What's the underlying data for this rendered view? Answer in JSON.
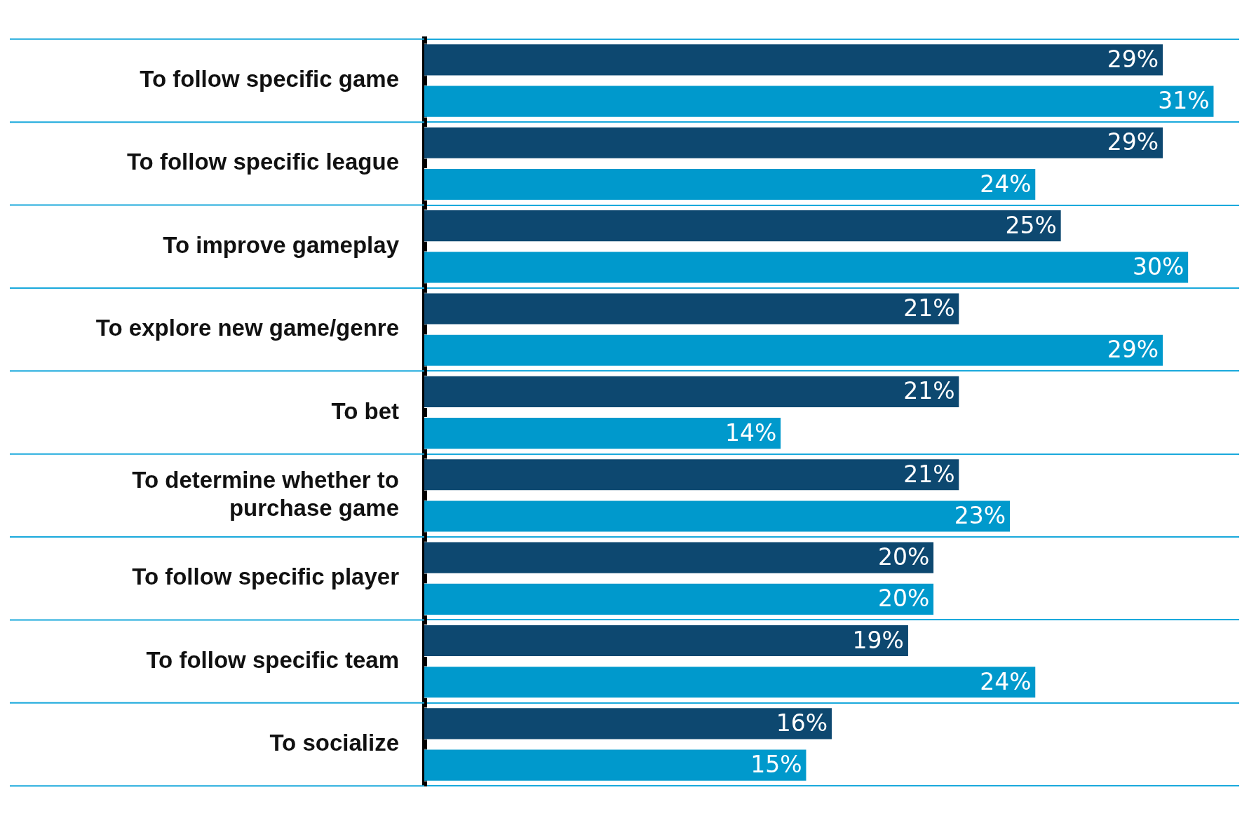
{
  "chart_data": {
    "type": "bar",
    "orientation": "horizontal",
    "categories": [
      "To follow specific game",
      "To follow specific league",
      "To improve gameplay",
      "To explore new game/genre",
      "To bet",
      "To determine whether to purchase game",
      "To follow specific player",
      "To follow specific team",
      "To socialize"
    ],
    "series": [
      {
        "color": "#0d4870",
        "values": [
          29,
          29,
          25,
          21,
          21,
          21,
          20,
          19,
          16
        ],
        "value_labels": [
          "29%",
          "29%",
          "25%",
          "21%",
          "21%",
          "21%",
          "20%",
          "19%",
          "16%"
        ]
      },
      {
        "color": "#0099cc",
        "values": [
          31,
          24,
          30,
          29,
          14,
          23,
          20,
          24,
          15
        ],
        "value_labels": [
          "31%",
          "24%",
          "30%",
          "29%",
          "14%",
          "23%",
          "20%",
          "24%",
          "15%"
        ]
      }
    ],
    "xlim": [
      0,
      32
    ],
    "tick_labels": "y",
    "grid": "y",
    "legend": false
  }
}
